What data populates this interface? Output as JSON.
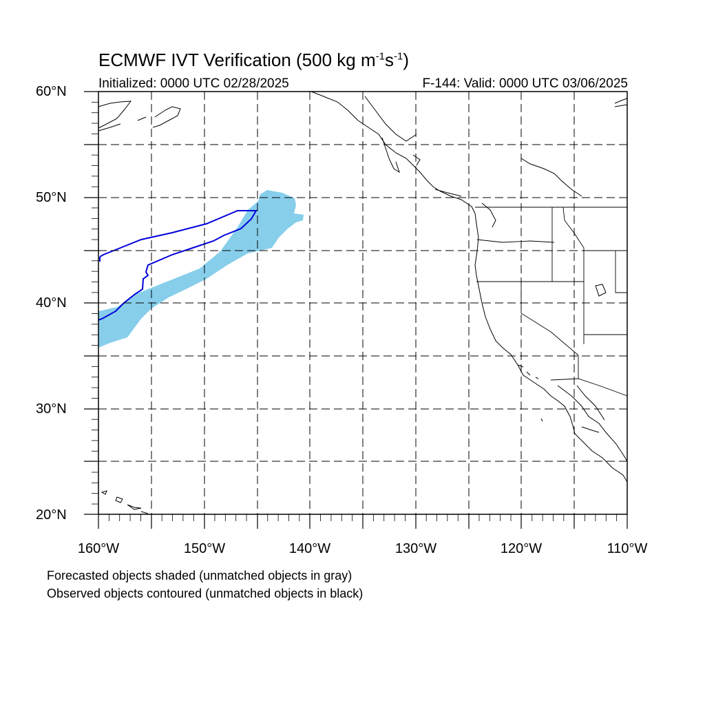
{
  "title": {
    "main": "ECMWF IVT Verification (500 kg m",
    "sup1": "-1",
    "s": "s",
    "sup2": "-1",
    "close": ")"
  },
  "initialized": "Initialized: 0000 UTC 02/28/2025",
  "valid": "F-144: Valid: 0000 UTC 03/06/2025",
  "lat_labels": [
    "60°N",
    "50°N",
    "40°N",
    "30°N",
    "20°N"
  ],
  "lon_labels": [
    "160°W",
    "150°W",
    "140°W",
    "130°W",
    "120°W",
    "110°W"
  ],
  "notes": [
    "Forecasted objects shaded (unmatched objects in gray)",
    "Observed objects contoured (unmatched objects in black)"
  ],
  "colors": {
    "forecast_fill": "#87ceeb",
    "observed_contour": "#0000dd"
  }
}
